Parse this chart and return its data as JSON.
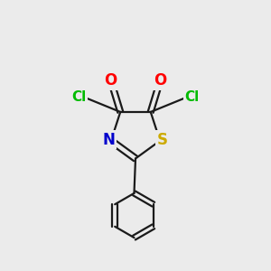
{
  "bg_color": "#ebebeb",
  "bond_color": "#1a1a1a",
  "atom_colors": {
    "O": "#ff0000",
    "Cl": "#00bb00",
    "N": "#0000cc",
    "S": "#ccaa00"
  },
  "figsize": [
    3.0,
    3.0
  ],
  "dpi": 100,
  "lw": 1.6
}
